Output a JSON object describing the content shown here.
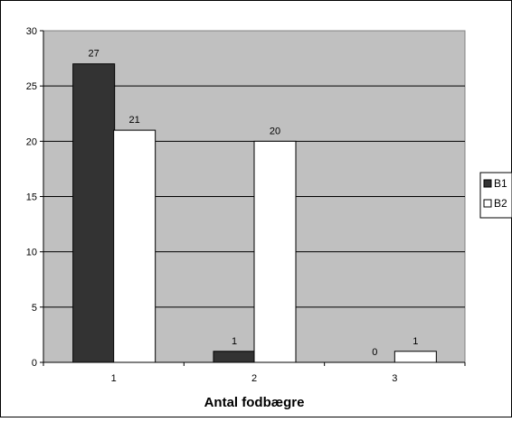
{
  "chart_data": {
    "type": "bar",
    "title": "",
    "xlabel": "Antal fodbægre",
    "ylabel": "",
    "categories": [
      "1",
      "2",
      "3"
    ],
    "series": [
      {
        "name": "B1",
        "values": [
          27,
          1,
          0
        ],
        "color": "#333333"
      },
      {
        "name": "B2",
        "values": [
          21,
          20,
          1
        ],
        "color": "#ffffff"
      }
    ],
    "ylim": [
      0,
      30
    ],
    "yticks": [
      0,
      5,
      10,
      15,
      20,
      25,
      30
    ],
    "grid": true,
    "legend": "right",
    "plot_background": "#c0c0c0"
  }
}
